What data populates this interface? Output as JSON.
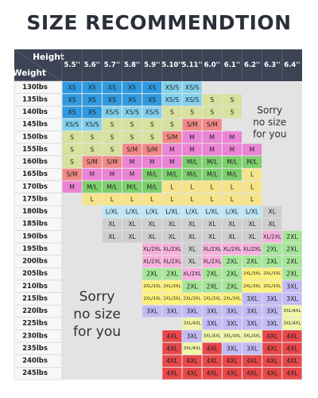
{
  "page": {
    "title": "SIZE RECOMMENDTION"
  },
  "colors": {
    "header": "#3c4354",
    "headerBorder": "#5b6277",
    "panel": "#e3e3e3",
    "rowLabelBg": "#f7f7f7",
    "XS": "#2f9ae0",
    "XS/S": "#83d2ee",
    "S": "#d6e29e",
    "S/M": "#f28987",
    "M": "#ec84d5",
    "M/L": "#7ed06e",
    "L": "#f6e48a",
    "L/XL": "#bfe7f6",
    "XL": "#cfcfcf",
    "XL/2XL": "#f7b0dd",
    "2XL": "#a6e69a",
    "2XL/3XL": "#fff27a",
    "3XL": "#c3bbf4",
    "3XL/4XL": "#f2f7a8",
    "4XL": "#e9484a"
  },
  "chart_data": {
    "type": "table",
    "title": "SIZE RECOMMENDTION",
    "column_axis_label": "Height",
    "row_axis_label": "Weight",
    "heights": [
      "5.5''",
      "5.6''",
      "5.7''",
      "5.8''",
      "5.9''",
      "5.10''",
      "5.11''",
      "6.0''",
      "6.1''",
      "6.2''",
      "6.3''",
      "6.4''"
    ],
    "weights": [
      "130lbs",
      "135lbs",
      "140lbs",
      "145lbs",
      "150lbs",
      "155lbs",
      "160lbs",
      "165lbs",
      "170lbs",
      "175lbs",
      "180lbs",
      "185lbs",
      "190lbs",
      "195lbs",
      "200lbs",
      "205lbs",
      "210lbs",
      "215lbs",
      "220lbs",
      "225lbs",
      "230lbs",
      "235lbs",
      "240lbs",
      "245lbs"
    ],
    "rows": [
      [
        "XS",
        "XS",
        "XS",
        "XS",
        "XS",
        "XS/S",
        "XS/S",
        "",
        "",
        "",
        "",
        ""
      ],
      [
        "XS",
        "XS",
        "XS",
        "XS",
        "XS",
        "XS/S",
        "XS/S",
        "S",
        "S",
        "",
        "",
        ""
      ],
      [
        "XS",
        "XS",
        "XS/S",
        "XS/S",
        "XS/S",
        "S",
        "S",
        "S",
        "S",
        "",
        "",
        ""
      ],
      [
        "XS/S",
        "XS/S",
        "S",
        "S",
        "S",
        "S",
        "S/M",
        "S/M",
        "",
        "",
        "",
        ""
      ],
      [
        "S",
        "S",
        "S",
        "S",
        "S",
        "S/M",
        "M",
        "M",
        "M",
        "",
        "",
        ""
      ],
      [
        "S",
        "S",
        "S",
        "S/M",
        "S/M",
        "M",
        "M",
        "M",
        "M",
        "M",
        "",
        ""
      ],
      [
        "S",
        "S/M",
        "S/M",
        "M",
        "M",
        "M",
        "M/L",
        "M/L",
        "M/L",
        "M/L",
        "",
        ""
      ],
      [
        "S/M",
        "M",
        "M",
        "M",
        "M/L",
        "M/L",
        "M/L",
        "M/L",
        "M/L",
        "L",
        "",
        ""
      ],
      [
        "M",
        "M/L",
        "M/L",
        "M/L",
        "M/L",
        "L",
        "L",
        "L",
        "L",
        "L",
        "",
        ""
      ],
      [
        "",
        "L",
        "L",
        "L",
        "L",
        "L",
        "L",
        "L",
        "L",
        "L",
        "",
        ""
      ],
      [
        "",
        "",
        "L/XL",
        "L/XL",
        "L/XL",
        "L/XL",
        "L/XL",
        "L/XL",
        "L/XL",
        "L/XL",
        "XL",
        ""
      ],
      [
        "",
        "",
        "XL",
        "XL",
        "XL",
        "XL",
        "XL",
        "XL",
        "XL",
        "XL",
        "XL",
        ""
      ],
      [
        "",
        "",
        "XL",
        "XL",
        "XL",
        "XL",
        "XL",
        "XL",
        "XL",
        "XL",
        "XL/2XL",
        "2XL"
      ],
      [
        "",
        "",
        "",
        "",
        "XL/2XL",
        "XL/2XL",
        "XL",
        "XL/2XL",
        "XL/2XL",
        "XL/2XL",
        "2XL",
        "2XL"
      ],
      [
        "",
        "",
        "",
        "",
        "XL/2XL",
        "XL/2XL",
        "XL",
        "XL/2XL",
        "2XL",
        "2XL",
        "2XL",
        "2XL"
      ],
      [
        "",
        "",
        "",
        "",
        "2XL",
        "2XL",
        "XL/2XL",
        "2XL",
        "2XL",
        "2XL/3XL",
        "2XL/3XL",
        "2XL"
      ],
      [
        "",
        "",
        "",
        "",
        "2XL/3XL",
        "2XL/3XL",
        "2XL",
        "2XL",
        "2XL",
        "2XL/3XL",
        "2XL/3XL",
        "3XL"
      ],
      [
        "",
        "",
        "",
        "",
        "2XL/3XL",
        "2XL/3XL",
        "2XL/3XL",
        "2XL/3XL",
        "2XL/3XL",
        "3XL",
        "3XL",
        "3XL"
      ],
      [
        "",
        "",
        "",
        "",
        "3XL",
        "3XL",
        "3XL",
        "3XL",
        "3XL",
        "3XL",
        "3XL",
        "3XL/4XL"
      ],
      [
        "",
        "",
        "",
        "",
        "",
        "",
        "3XL/4XL",
        "3XL",
        "3XL",
        "3XL",
        "3XL",
        "3XL/4XL"
      ],
      [
        "",
        "",
        "",
        "",
        "",
        "4XL",
        "3XL",
        "3XL/4XL",
        "3XL/4XL",
        "3XL/4XL",
        "4XL",
        "4XL"
      ],
      [
        "",
        "",
        "",
        "",
        "",
        "4XL",
        "3XL/4XL",
        "4XL",
        "3XL",
        "3XL",
        "4XL",
        "4XL"
      ],
      [
        "",
        "",
        "",
        "",
        "",
        "4XL",
        "4XL",
        "4XL",
        "4XL",
        "4XL",
        "4XL",
        "4XL"
      ],
      [
        "",
        "",
        "",
        "",
        "",
        "4XL",
        "4XL",
        "4XL",
        "4XL",
        "4XL",
        "4XL",
        "4XL"
      ]
    ],
    "annotations": [
      {
        "text": "Sorry\nno size\nfor you",
        "location": "upper-right"
      },
      {
        "text": "Sorry\nno size\nfor you",
        "location": "lower-left"
      }
    ]
  }
}
